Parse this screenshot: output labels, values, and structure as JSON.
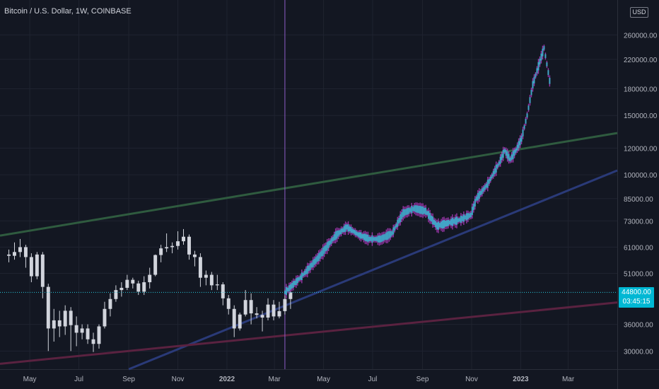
{
  "header": {
    "title": "Bitcoin / U.S. Dollar, 1W, COINBASE"
  },
  "currency": "USD",
  "last_price": {
    "value": "44800.00",
    "countdown": "03:45:15"
  },
  "colors": {
    "background": "#131722",
    "grid": "#1f2330",
    "up_candle": "#d1d4dc",
    "down_candle": "#d1d4dc",
    "projection": "#42a5c8",
    "projection_wick": "#b03bbf",
    "green_line": "#2f5b3f",
    "blue_line": "#2a3a78",
    "red_line": "#5a2240",
    "price_line": "#26c6da",
    "cursor_line": "#8e5dc8"
  },
  "chart_data": {
    "type": "candlestick",
    "title": "Bitcoin / U.S. Dollar, 1W, COINBASE",
    "y_scale": "log",
    "ylim": [
      26500,
      330000
    ],
    "y_ticks": [
      "260000.00",
      "220000.00",
      "180000.00",
      "150000.00",
      "120000.00",
      "100000.00",
      "85000.00",
      "73000.00",
      "61000.00",
      "51000.00",
      "36000.00",
      "30000.00"
    ],
    "y_tick_values": [
      260000,
      220000,
      180000,
      150000,
      120000,
      100000,
      85000,
      73000,
      61000,
      51000,
      36000,
      30000
    ],
    "x_ticks": [
      "May",
      "Jul",
      "Sep",
      "Nov",
      "2022",
      "Mar",
      "May",
      "Jul",
      "Sep",
      "Nov",
      "2023",
      "Mar"
    ],
    "x_tick_dates": [
      "2021-05-01",
      "2021-07-01",
      "2021-09-01",
      "2021-11-01",
      "2022-01-01",
      "2022-03-01",
      "2022-05-01",
      "2022-07-01",
      "2022-09-01",
      "2022-11-01",
      "2023-01-01",
      "2023-03-01"
    ],
    "x_range": [
      "2021-03-25",
      "2023-05-01"
    ],
    "candles_start": "2021-04-05",
    "candles": [
      [
        58000,
        60000,
        55000,
        57500
      ],
      [
        57500,
        63000,
        56000,
        59000
      ],
      [
        59000,
        64500,
        57000,
        61000
      ],
      [
        61000,
        62000,
        53000,
        57000
      ],
      [
        57000,
        58500,
        48000,
        50000
      ],
      [
        50000,
        59000,
        49000,
        58000
      ],
      [
        58000,
        59000,
        43000,
        46500
      ],
      [
        46500,
        47500,
        30000,
        35000
      ],
      [
        35000,
        40000,
        32000,
        37000
      ],
      [
        37000,
        39500,
        33000,
        35500
      ],
      [
        35500,
        41000,
        33500,
        39500
      ],
      [
        39500,
        40500,
        30000,
        35800
      ],
      [
        35800,
        38000,
        31000,
        34000
      ],
      [
        34000,
        36000,
        32500,
        35000
      ],
      [
        35000,
        36000,
        31500,
        32500
      ],
      [
        32500,
        34000,
        29800,
        31500
      ],
      [
        31500,
        36000,
        30500,
        35500
      ],
      [
        35500,
        42000,
        35000,
        40000
      ],
      [
        40000,
        44500,
        38000,
        42800
      ],
      [
        42800,
        47000,
        42000,
        45500
      ],
      [
        45500,
        48000,
        43500,
        46200
      ],
      [
        46200,
        50500,
        45500,
        48800
      ],
      [
        48800,
        49500,
        46000,
        47600
      ],
      [
        47600,
        48500,
        44000,
        45000
      ],
      [
        45000,
        50000,
        44000,
        48000
      ],
      [
        48000,
        53000,
        46000,
        50500
      ],
      [
        50500,
        58000,
        50000,
        57800
      ],
      [
        57800,
        62000,
        55000,
        60500
      ],
      [
        60500,
        67000,
        59000,
        61000
      ],
      [
        61000,
        63000,
        58500,
        61500
      ],
      [
        61500,
        68000,
        60000,
        63500
      ],
      [
        63500,
        69000,
        62000,
        65500
      ],
      [
        65500,
        66500,
        56000,
        58000
      ],
      [
        58000,
        59500,
        53500,
        57000
      ],
      [
        57000,
        58500,
        46500,
        49500
      ],
      [
        49500,
        52000,
        47000,
        50500
      ],
      [
        50500,
        51500,
        45500,
        47000
      ],
      [
        47000,
        50500,
        45500,
        47300
      ],
      [
        47300,
        48000,
        41000,
        43000
      ],
      [
        43000,
        44000,
        38500,
        40000
      ],
      [
        40000,
        41000,
        33000,
        35000
      ],
      [
        35000,
        39000,
        34500,
        38500
      ],
      [
        38500,
        45500,
        38000,
        42500
      ],
      [
        42500,
        44500,
        36000,
        38800
      ],
      [
        38800,
        40500,
        37500,
        38400
      ],
      [
        38400,
        39500,
        34300,
        37700
      ],
      [
        37700,
        43000,
        37000,
        41200
      ],
      [
        41200,
        42500,
        37000,
        38000
      ],
      [
        38000,
        42000,
        37500,
        39400
      ],
      [
        39400,
        44500,
        38500,
        42800
      ],
      [
        42800,
        48000,
        40000,
        44800
      ]
    ],
    "series": [
      {
        "name": "",
        "start": "2022-03-14",
        "end": "2023-02-06",
        "points": [
          [
            "2022-03-14",
            44800
          ],
          [
            "2022-04-04",
            50000
          ],
          [
            "2022-04-25",
            57000
          ],
          [
            "2022-05-16",
            66000
          ],
          [
            "2022-05-30",
            70000
          ],
          [
            "2022-06-13",
            66500
          ],
          [
            "2022-06-27",
            64500
          ],
          [
            "2022-07-11",
            64500
          ],
          [
            "2022-07-25",
            67000
          ],
          [
            "2022-08-08",
            77000
          ],
          [
            "2022-08-22",
            79500
          ],
          [
            "2022-09-05",
            78000
          ],
          [
            "2022-09-19",
            70500
          ],
          [
            "2022-10-03",
            72000
          ],
          [
            "2022-10-17",
            73500
          ],
          [
            "2022-10-31",
            76000
          ],
          [
            "2022-11-07",
            85000
          ],
          [
            "2022-11-21",
            94000
          ],
          [
            "2022-12-05",
            108000
          ],
          [
            "2022-12-12",
            118000
          ],
          [
            "2022-12-19",
            111000
          ],
          [
            "2022-12-26",
            118000
          ],
          [
            "2023-01-02",
            128000
          ],
          [
            "2023-01-09",
            150000
          ],
          [
            "2023-01-16",
            185000
          ],
          [
            "2023-01-23",
            210000
          ],
          [
            "2023-01-30",
            238000
          ],
          [
            "2023-02-06",
            190000
          ]
        ]
      }
    ],
    "trend_lines": [
      {
        "color": "green",
        "from": [
          "2021-03-25",
          66000
        ],
        "to": [
          "2023-05-01",
          133000
        ]
      },
      {
        "color": "blue",
        "from": [
          "2021-09-01",
          26500
        ],
        "to": [
          "2023-05-01",
          103000
        ]
      },
      {
        "color": "red",
        "from": [
          "2021-03-25",
          27500
        ],
        "to": [
          "2023-05-01",
          41800
        ]
      }
    ],
    "vertical_marker": "2022-03-14",
    "grid": true
  }
}
